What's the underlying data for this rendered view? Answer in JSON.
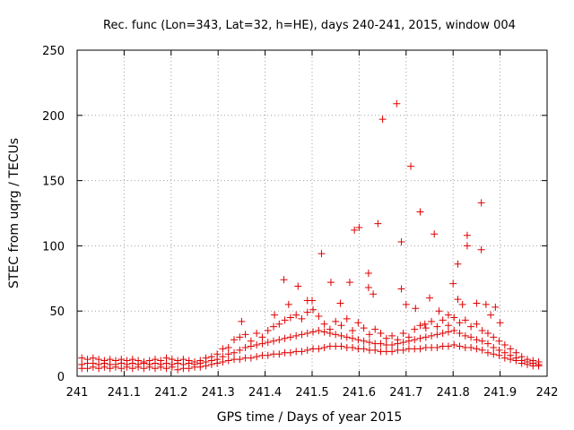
{
  "chart_data": {
    "type": "scatter",
    "title": "Rec. func (Lon=343, Lat=32, h=HE), days 240-241, 2015, window 004",
    "xlabel": "GPS time / Days of year 2015",
    "ylabel": "STEC from uqrg / TECUs",
    "xlim": [
      241,
      242
    ],
    "ylim": [
      0,
      250
    ],
    "x_ticks": [
      "241",
      "241.1",
      "241.2",
      "241.3",
      "241.4",
      "241.5",
      "241.6",
      "241.7",
      "241.8",
      "241.9",
      "242"
    ],
    "y_ticks": [
      "0",
      "50",
      "100",
      "150",
      "200",
      "250"
    ],
    "grid": true,
    "marker": "+",
    "color": "#e00000",
    "series": [
      {
        "points": [
          [
            241.01,
            9
          ],
          [
            241.01,
            14
          ],
          [
            241.01,
            6
          ],
          [
            241.022,
            10
          ],
          [
            241.022,
            13
          ],
          [
            241.022,
            6
          ],
          [
            241.034,
            10
          ],
          [
            241.034,
            14
          ],
          [
            241.034,
            7
          ],
          [
            241.046,
            9
          ],
          [
            241.046,
            13
          ],
          [
            241.046,
            6
          ],
          [
            241.058,
            10
          ],
          [
            241.058,
            12
          ],
          [
            241.058,
            7
          ],
          [
            241.07,
            9
          ],
          [
            241.07,
            13
          ],
          [
            241.07,
            6
          ],
          [
            241.082,
            9
          ],
          [
            241.082,
            12
          ],
          [
            241.082,
            7
          ],
          [
            241.094,
            10
          ],
          [
            241.094,
            13
          ],
          [
            241.094,
            6
          ],
          [
            241.106,
            9
          ],
          [
            241.106,
            12
          ],
          [
            241.106,
            7
          ],
          [
            241.118,
            10
          ],
          [
            241.118,
            13
          ],
          [
            241.118,
            6
          ],
          [
            241.13,
            9
          ],
          [
            241.13,
            12
          ],
          [
            241.13,
            7
          ],
          [
            241.142,
            10
          ],
          [
            241.142,
            11
          ],
          [
            241.142,
            6
          ],
          [
            241.154,
            9
          ],
          [
            241.154,
            12
          ],
          [
            241.154,
            7
          ],
          [
            241.166,
            10
          ],
          [
            241.166,
            13
          ],
          [
            241.166,
            6
          ],
          [
            241.178,
            9
          ],
          [
            241.178,
            12
          ],
          [
            241.178,
            7
          ],
          [
            241.19,
            10
          ],
          [
            241.19,
            14
          ],
          [
            241.19,
            6
          ],
          [
            241.202,
            9
          ],
          [
            241.202,
            13
          ],
          [
            241.202,
            7
          ],
          [
            241.214,
            10
          ],
          [
            241.214,
            12
          ],
          [
            241.214,
            5
          ],
          [
            241.226,
            9
          ],
          [
            241.226,
            13
          ],
          [
            241.226,
            6
          ],
          [
            241.238,
            10
          ],
          [
            241.238,
            12
          ],
          [
            241.238,
            6
          ],
          [
            241.25,
            9
          ],
          [
            241.25,
            11
          ],
          [
            241.25,
            7
          ],
          [
            241.262,
            10
          ],
          [
            241.262,
            12
          ],
          [
            241.262,
            7
          ],
          [
            241.274,
            11
          ],
          [
            241.274,
            14
          ],
          [
            241.274,
            8
          ],
          [
            241.286,
            12
          ],
          [
            241.286,
            15
          ],
          [
            241.286,
            9
          ],
          [
            241.298,
            13
          ],
          [
            241.298,
            17
          ],
          [
            241.298,
            10
          ],
          [
            241.31,
            15
          ],
          [
            241.31,
            21
          ],
          [
            241.31,
            11
          ],
          [
            241.322,
            17
          ],
          [
            241.322,
            22
          ],
          [
            241.322,
            12
          ],
          [
            241.334,
            18
          ],
          [
            241.334,
            28
          ],
          [
            241.334,
            13
          ],
          [
            241.346,
            20
          ],
          [
            241.346,
            30
          ],
          [
            241.346,
            13
          ],
          [
            241.358,
            22
          ],
          [
            241.358,
            32
          ],
          [
            241.358,
            14
          ],
          [
            241.37,
            23
          ],
          [
            241.37,
            27
          ],
          [
            241.37,
            14
          ],
          [
            241.382,
            24
          ],
          [
            241.382,
            33
          ],
          [
            241.382,
            15
          ],
          [
            241.394,
            25
          ],
          [
            241.394,
            30
          ],
          [
            241.394,
            16
          ],
          [
            241.406,
            26
          ],
          [
            241.406,
            35
          ],
          [
            241.406,
            16
          ],
          [
            241.418,
            27
          ],
          [
            241.418,
            38
          ],
          [
            241.418,
            17
          ],
          [
            241.43,
            28
          ],
          [
            241.43,
            40
          ],
          [
            241.43,
            17
          ],
          [
            241.442,
            29
          ],
          [
            241.442,
            43
          ],
          [
            241.442,
            18
          ],
          [
            241.454,
            30
          ],
          [
            241.454,
            45
          ],
          [
            241.454,
            18
          ],
          [
            241.466,
            31
          ],
          [
            241.466,
            47
          ],
          [
            241.466,
            19
          ],
          [
            241.478,
            32
          ],
          [
            241.478,
            44
          ],
          [
            241.478,
            19
          ],
          [
            241.49,
            33
          ],
          [
            241.49,
            49
          ],
          [
            241.49,
            20
          ],
          [
            241.502,
            34
          ],
          [
            241.502,
            51
          ],
          [
            241.502,
            21
          ],
          [
            241.514,
            35
          ],
          [
            241.514,
            46
          ],
          [
            241.514,
            21
          ],
          [
            241.526,
            34
          ],
          [
            241.526,
            40
          ],
          [
            241.526,
            22
          ],
          [
            241.538,
            33
          ],
          [
            241.538,
            36
          ],
          [
            241.538,
            23
          ],
          [
            241.55,
            32
          ],
          [
            241.55,
            42
          ],
          [
            241.55,
            23
          ],
          [
            241.562,
            31
          ],
          [
            241.562,
            39
          ],
          [
            241.562,
            23
          ],
          [
            241.574,
            30
          ],
          [
            241.574,
            44
          ],
          [
            241.574,
            22
          ],
          [
            241.586,
            29
          ],
          [
            241.586,
            35
          ],
          [
            241.586,
            22
          ],
          [
            241.598,
            28
          ],
          [
            241.598,
            41
          ],
          [
            241.598,
            21
          ],
          [
            241.61,
            27
          ],
          [
            241.61,
            37
          ],
          [
            241.61,
            21
          ],
          [
            241.622,
            26
          ],
          [
            241.622,
            32
          ],
          [
            241.622,
            20
          ],
          [
            241.634,
            25
          ],
          [
            241.634,
            36
          ],
          [
            241.634,
            20
          ],
          [
            241.646,
            25
          ],
          [
            241.646,
            33
          ],
          [
            241.646,
            19
          ],
          [
            241.658,
            24
          ],
          [
            241.658,
            29
          ],
          [
            241.658,
            19
          ],
          [
            241.67,
            24
          ],
          [
            241.67,
            31
          ],
          [
            241.67,
            19
          ],
          [
            241.682,
            25
          ],
          [
            241.682,
            28
          ],
          [
            241.682,
            20
          ],
          [
            241.694,
            26
          ],
          [
            241.694,
            33
          ],
          [
            241.694,
            20
          ],
          [
            241.706,
            27
          ],
          [
            241.706,
            30
          ],
          [
            241.706,
            21
          ],
          [
            241.718,
            28
          ],
          [
            241.718,
            36
          ],
          [
            241.718,
            21
          ],
          [
            241.73,
            29
          ],
          [
            241.73,
            39
          ],
          [
            241.73,
            21
          ],
          [
            241.742,
            30
          ],
          [
            241.742,
            37
          ],
          [
            241.742,
            22
          ],
          [
            241.754,
            31
          ],
          [
            241.754,
            42
          ],
          [
            241.754,
            22
          ],
          [
            241.766,
            32
          ],
          [
            241.766,
            38
          ],
          [
            241.766,
            22
          ],
          [
            241.778,
            33
          ],
          [
            241.778,
            43
          ],
          [
            241.778,
            23
          ],
          [
            241.79,
            34
          ],
          [
            241.79,
            39
          ],
          [
            241.79,
            23
          ],
          [
            241.802,
            35
          ],
          [
            241.802,
            45
          ],
          [
            241.802,
            24
          ],
          [
            241.814,
            33
          ],
          [
            241.814,
            41
          ],
          [
            241.814,
            23
          ],
          [
            241.826,
            31
          ],
          [
            241.826,
            43
          ],
          [
            241.826,
            22
          ],
          [
            241.838,
            30
          ],
          [
            241.838,
            38
          ],
          [
            241.838,
            22
          ],
          [
            241.85,
            28
          ],
          [
            241.85,
            40
          ],
          [
            241.85,
            21
          ],
          [
            241.862,
            27
          ],
          [
            241.862,
            35
          ],
          [
            241.862,
            20
          ],
          [
            241.874,
            25
          ],
          [
            241.874,
            33
          ],
          [
            241.874,
            18
          ],
          [
            241.886,
            22
          ],
          [
            241.886,
            30
          ],
          [
            241.886,
            17
          ],
          [
            241.898,
            20
          ],
          [
            241.898,
            27
          ],
          [
            241.898,
            16
          ],
          [
            241.91,
            18
          ],
          [
            241.91,
            24
          ],
          [
            241.91,
            14
          ],
          [
            241.922,
            16
          ],
          [
            241.922,
            21
          ],
          [
            241.922,
            13
          ],
          [
            241.934,
            14
          ],
          [
            241.934,
            18
          ],
          [
            241.934,
            12
          ],
          [
            241.946,
            12
          ],
          [
            241.946,
            15
          ],
          [
            241.946,
            10
          ],
          [
            241.958,
            11
          ],
          [
            241.958,
            13
          ],
          [
            241.958,
            9
          ],
          [
            241.97,
            10
          ],
          [
            241.97,
            12
          ],
          [
            241.97,
            8
          ],
          [
            241.982,
            9
          ],
          [
            241.982,
            11
          ],
          [
            241.982,
            8
          ],
          [
            241.35,
            42
          ],
          [
            241.42,
            47
          ],
          [
            241.44,
            74
          ],
          [
            241.45,
            55
          ],
          [
            241.47,
            69
          ],
          [
            241.49,
            58
          ],
          [
            241.5,
            58
          ],
          [
            241.52,
            94
          ],
          [
            241.54,
            72
          ],
          [
            241.56,
            56
          ],
          [
            241.58,
            72
          ],
          [
            241.59,
            112
          ],
          [
            241.6,
            114
          ],
          [
            241.62,
            79
          ],
          [
            241.62,
            68
          ],
          [
            241.63,
            63
          ],
          [
            241.64,
            117
          ],
          [
            241.65,
            197
          ],
          [
            241.68,
            209
          ],
          [
            241.69,
            103
          ],
          [
            241.69,
            67
          ],
          [
            241.7,
            55
          ],
          [
            241.71,
            161
          ],
          [
            241.72,
            52
          ],
          [
            241.73,
            126
          ],
          [
            241.74,
            40
          ],
          [
            241.75,
            60
          ],
          [
            241.76,
            109
          ],
          [
            241.77,
            50
          ],
          [
            241.79,
            47
          ],
          [
            241.8,
            71
          ],
          [
            241.81,
            86
          ],
          [
            241.81,
            59
          ],
          [
            241.82,
            55
          ],
          [
            241.83,
            108
          ],
          [
            241.83,
            100
          ],
          [
            241.85,
            56
          ],
          [
            241.86,
            133
          ],
          [
            241.86,
            97
          ],
          [
            241.87,
            55
          ],
          [
            241.88,
            47
          ],
          [
            241.89,
            53
          ],
          [
            241.9,
            41
          ]
        ]
      }
    ]
  }
}
